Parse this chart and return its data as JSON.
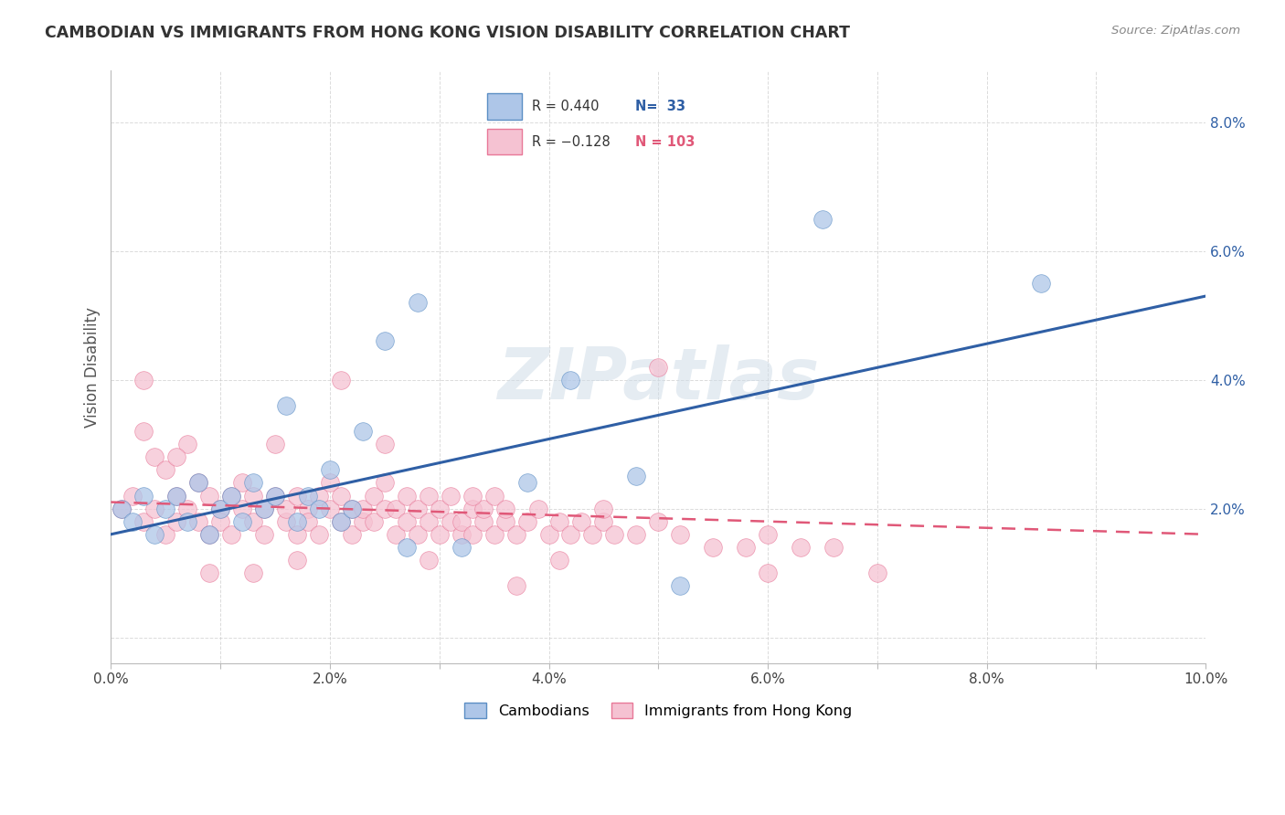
{
  "title": "CAMBODIAN VS IMMIGRANTS FROM HONG KONG VISION DISABILITY CORRELATION CHART",
  "source": "Source: ZipAtlas.com",
  "ylabel": "Vision Disability",
  "xlim": [
    0.0,
    0.1
  ],
  "ylim": [
    -0.004,
    0.088
  ],
  "xticks": [
    0.0,
    0.02,
    0.04,
    0.06,
    0.08,
    0.1
  ],
  "yticks": [
    0.0,
    0.02,
    0.04,
    0.06,
    0.08
  ],
  "ytick_labels": [
    "",
    "2.0%",
    "4.0%",
    "6.0%",
    "8.0%"
  ],
  "xtick_labels": [
    "0.0%",
    "",
    "2.0%",
    "",
    "4.0%",
    "",
    "6.0%",
    "",
    "8.0%",
    "",
    "10.0%"
  ],
  "xticks_all": [
    0.0,
    0.01,
    0.02,
    0.03,
    0.04,
    0.05,
    0.06,
    0.07,
    0.08,
    0.09,
    0.1
  ],
  "cambodian_color": "#aec6e8",
  "cambodian_edge_color": "#5b8ec4",
  "cambodian_line_color": "#2f5fa5",
  "hk_color": "#f5c2d2",
  "hk_edge_color": "#e87898",
  "hk_line_color": "#e05878",
  "R_cambodian": 0.44,
  "N_cambodian": 33,
  "R_hk": -0.128,
  "N_hk": 103,
  "background_color": "#ffffff",
  "grid_color": "#cccccc",
  "watermark": "ZIPatlas",
  "blue_trend_x0": 0.0,
  "blue_trend_y0": 0.016,
  "blue_trend_x1": 0.1,
  "blue_trend_y1": 0.053,
  "pink_trend_x0": 0.0,
  "pink_trend_y0": 0.021,
  "pink_trend_x1": 0.1,
  "pink_trend_y1": 0.016,
  "cambodian_x": [
    0.001,
    0.002,
    0.003,
    0.004,
    0.005,
    0.006,
    0.007,
    0.008,
    0.009,
    0.01,
    0.011,
    0.012,
    0.013,
    0.014,
    0.015,
    0.016,
    0.017,
    0.018,
    0.019,
    0.02,
    0.021,
    0.022,
    0.023,
    0.025,
    0.027,
    0.028,
    0.032,
    0.038,
    0.042,
    0.048,
    0.052,
    0.065,
    0.085
  ],
  "cambodian_y": [
    0.02,
    0.018,
    0.022,
    0.016,
    0.02,
    0.022,
    0.018,
    0.024,
    0.016,
    0.02,
    0.022,
    0.018,
    0.024,
    0.02,
    0.022,
    0.036,
    0.018,
    0.022,
    0.02,
    0.026,
    0.018,
    0.02,
    0.032,
    0.046,
    0.014,
    0.052,
    0.014,
    0.024,
    0.04,
    0.025,
    0.008,
    0.065,
    0.055
  ],
  "hk_x": [
    0.001,
    0.002,
    0.003,
    0.003,
    0.004,
    0.004,
    0.005,
    0.005,
    0.006,
    0.006,
    0.007,
    0.007,
    0.008,
    0.008,
    0.009,
    0.009,
    0.01,
    0.01,
    0.011,
    0.011,
    0.012,
    0.012,
    0.013,
    0.013,
    0.014,
    0.014,
    0.015,
    0.015,
    0.016,
    0.016,
    0.017,
    0.017,
    0.018,
    0.018,
    0.019,
    0.019,
    0.02,
    0.02,
    0.021,
    0.021,
    0.022,
    0.022,
    0.023,
    0.023,
    0.024,
    0.024,
    0.025,
    0.025,
    0.026,
    0.026,
    0.027,
    0.027,
    0.028,
    0.028,
    0.029,
    0.029,
    0.03,
    0.03,
    0.031,
    0.031,
    0.032,
    0.032,
    0.033,
    0.033,
    0.034,
    0.034,
    0.035,
    0.035,
    0.036,
    0.036,
    0.037,
    0.038,
    0.039,
    0.04,
    0.041,
    0.042,
    0.043,
    0.044,
    0.045,
    0.046,
    0.048,
    0.05,
    0.052,
    0.055,
    0.058,
    0.06,
    0.063,
    0.066,
    0.003,
    0.006,
    0.009,
    0.013,
    0.017,
    0.021,
    0.025,
    0.029,
    0.033,
    0.037,
    0.041,
    0.045,
    0.05,
    0.06,
    0.07
  ],
  "hk_y": [
    0.02,
    0.022,
    0.018,
    0.032,
    0.02,
    0.028,
    0.016,
    0.026,
    0.022,
    0.018,
    0.02,
    0.03,
    0.018,
    0.024,
    0.022,
    0.016,
    0.02,
    0.018,
    0.022,
    0.016,
    0.02,
    0.024,
    0.018,
    0.022,
    0.02,
    0.016,
    0.022,
    0.03,
    0.018,
    0.02,
    0.022,
    0.016,
    0.02,
    0.018,
    0.022,
    0.016,
    0.02,
    0.024,
    0.018,
    0.022,
    0.02,
    0.016,
    0.018,
    0.02,
    0.022,
    0.018,
    0.02,
    0.024,
    0.016,
    0.02,
    0.018,
    0.022,
    0.016,
    0.02,
    0.018,
    0.022,
    0.016,
    0.02,
    0.018,
    0.022,
    0.016,
    0.018,
    0.02,
    0.016,
    0.018,
    0.02,
    0.016,
    0.022,
    0.018,
    0.02,
    0.016,
    0.018,
    0.02,
    0.016,
    0.018,
    0.016,
    0.018,
    0.016,
    0.018,
    0.016,
    0.016,
    0.018,
    0.016,
    0.014,
    0.014,
    0.016,
    0.014,
    0.014,
    0.04,
    0.028,
    0.01,
    0.01,
    0.012,
    0.04,
    0.03,
    0.012,
    0.022,
    0.008,
    0.012,
    0.02,
    0.042,
    0.01,
    0.01
  ]
}
